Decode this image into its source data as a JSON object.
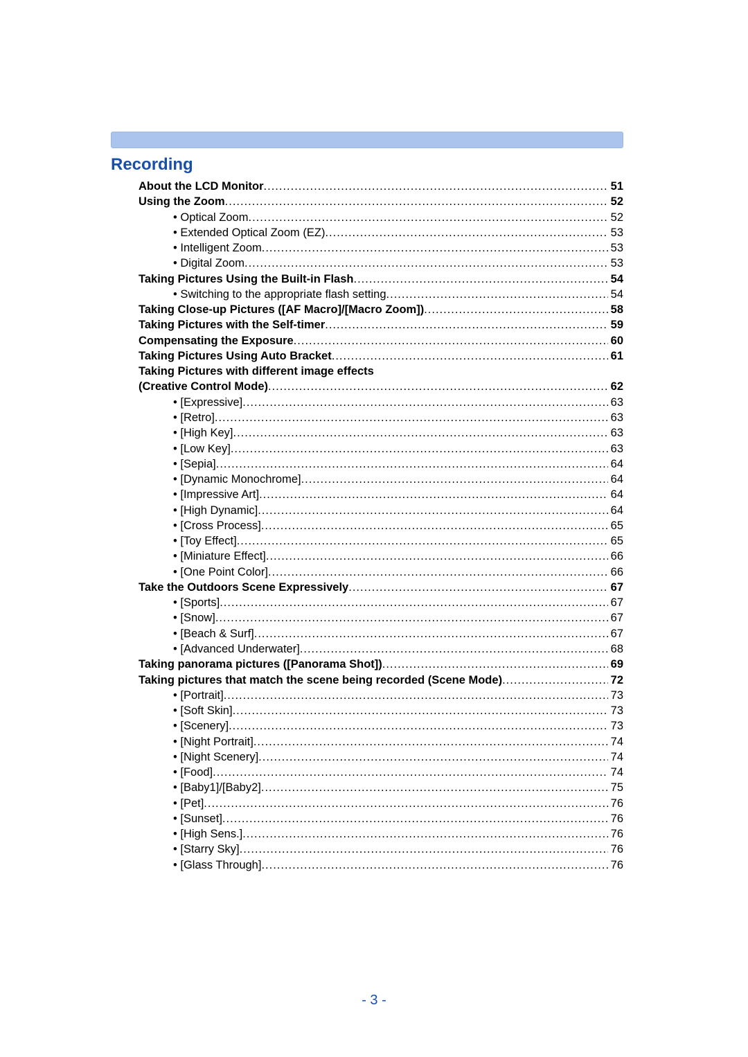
{
  "section_title": "Recording",
  "page_number": "- 3 -",
  "colors": {
    "header_bar": "#aac4ee",
    "title_text": "#1a4fa8",
    "body_text": "#000000",
    "page_num_text": "#1a4fa8",
    "background": "#ffffff"
  },
  "toc": [
    {
      "label": "About the LCD Monitor",
      "page": "51",
      "level": 0
    },
    {
      "label": "Using the Zoom",
      "page": "52",
      "level": 0
    },
    {
      "label": "• Optical Zoom",
      "page": "52",
      "level": 1
    },
    {
      "label": "• Extended Optical Zoom (EZ)",
      "page": "53",
      "level": 1
    },
    {
      "label": "• Intelligent Zoom",
      "page": "53",
      "level": 1
    },
    {
      "label": "• Digital Zoom",
      "page": "53",
      "level": 1
    },
    {
      "label": "Taking Pictures Using the Built-in Flash",
      "page": "54",
      "level": 0
    },
    {
      "label": "• Switching to the appropriate flash setting",
      "page": "54",
      "level": 1
    },
    {
      "label": "Taking Close-up Pictures ([AF Macro]/[Macro Zoom])",
      "page": "58",
      "level": 0
    },
    {
      "label": "Taking Pictures with the Self-timer",
      "page": "59",
      "level": 0
    },
    {
      "label": "Compensating the Exposure",
      "page": "60",
      "level": 0
    },
    {
      "label": "Taking Pictures Using Auto Bracket",
      "page": "61",
      "level": 0
    },
    {
      "label": "Taking Pictures with different image effects",
      "page": "",
      "level": 0,
      "nopage": true
    },
    {
      "label": "(Creative Control Mode)",
      "page": "62",
      "level": 0
    },
    {
      "label": "• [Expressive]",
      "page": "63",
      "level": 1
    },
    {
      "label": "• [Retro]",
      "page": "63",
      "level": 1
    },
    {
      "label": "• [High Key]",
      "page": "63",
      "level": 1
    },
    {
      "label": "• [Low Key]",
      "page": "63",
      "level": 1
    },
    {
      "label": "• [Sepia]",
      "page": "64",
      "level": 1
    },
    {
      "label": "• [Dynamic Monochrome]",
      "page": "64",
      "level": 1
    },
    {
      "label": "• [Impressive Art]",
      "page": "64",
      "level": 1
    },
    {
      "label": "• [High Dynamic]",
      "page": "64",
      "level": 1
    },
    {
      "label": "• [Cross Process]",
      "page": "65",
      "level": 1
    },
    {
      "label": "• [Toy Effect]",
      "page": "65",
      "level": 1
    },
    {
      "label": "• [Miniature Effect]",
      "page": "66",
      "level": 1
    },
    {
      "label": "• [One Point Color]",
      "page": "66",
      "level": 1
    },
    {
      "label": "Take the Outdoors Scene Expressively",
      "page": "67",
      "level": 0
    },
    {
      "label": "• [Sports]",
      "page": "67",
      "level": 1
    },
    {
      "label": "• [Snow]",
      "page": "67",
      "level": 1
    },
    {
      "label": "• [Beach & Surf]",
      "page": "67",
      "level": 1
    },
    {
      "label": "• [Advanced Underwater]",
      "page": "68",
      "level": 1
    },
    {
      "label": "Taking panorama pictures ([Panorama Shot])",
      "page": "69",
      "level": 0
    },
    {
      "label": "Taking pictures that match the scene being recorded (Scene Mode)",
      "page": "72",
      "level": 0
    },
    {
      "label": "• [Portrait]",
      "page": "73",
      "level": 1
    },
    {
      "label": "• [Soft Skin]",
      "page": "73",
      "level": 1
    },
    {
      "label": "• [Scenery]",
      "page": "73",
      "level": 1
    },
    {
      "label": "• [Night Portrait]",
      "page": "74",
      "level": 1
    },
    {
      "label": "• [Night Scenery]",
      "page": "74",
      "level": 1
    },
    {
      "label": "• [Food]",
      "page": "74",
      "level": 1
    },
    {
      "label": "• [Baby1]/[Baby2]",
      "page": "75",
      "level": 1
    },
    {
      "label": "• [Pet]",
      "page": "76",
      "level": 1
    },
    {
      "label": "• [Sunset]",
      "page": "76",
      "level": 1
    },
    {
      "label": "• [High Sens.]",
      "page": "76",
      "level": 1
    },
    {
      "label": "• [Starry Sky]",
      "page": "76",
      "level": 1
    },
    {
      "label": "• [Glass Through]",
      "page": "76",
      "level": 1
    }
  ]
}
